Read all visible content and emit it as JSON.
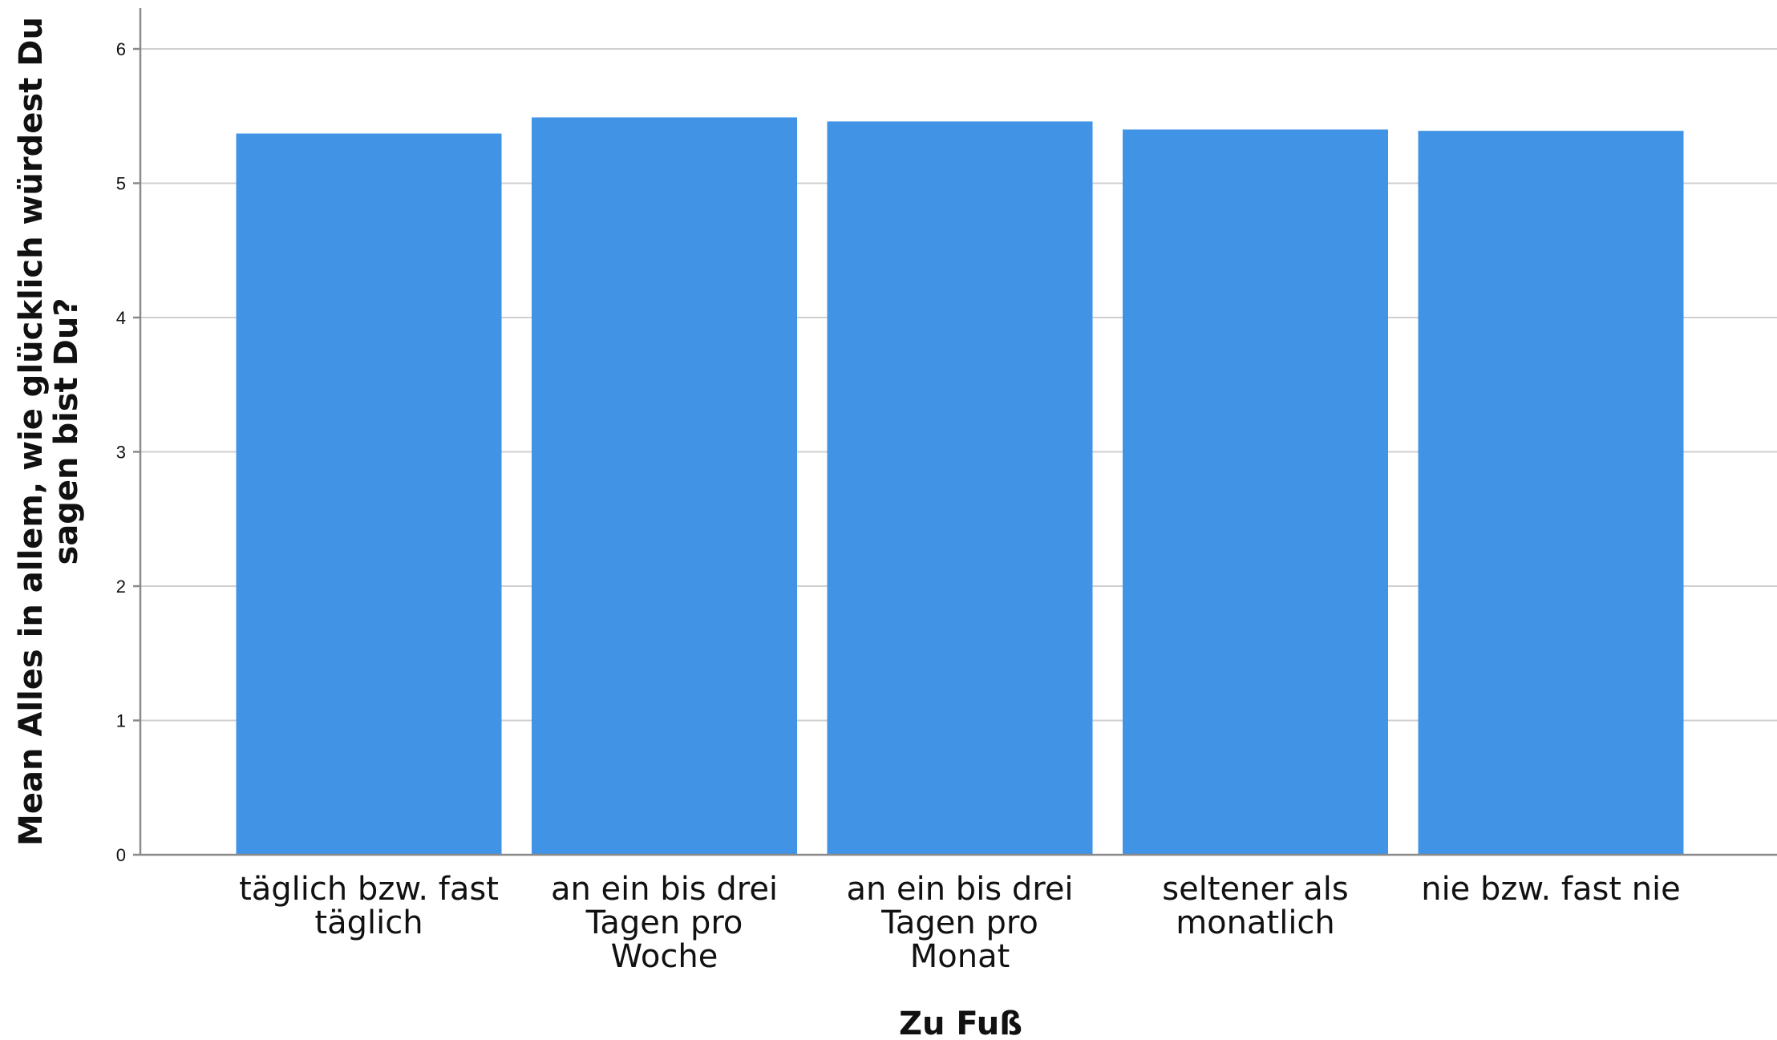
{
  "chart_data": {
    "type": "bar",
    "categories": [
      [
        "täglich bzw. fast",
        "täglich"
      ],
      [
        "an ein bis drei",
        "Tagen pro",
        "Woche"
      ],
      [
        "an ein bis drei",
        "Tagen pro",
        "Monat"
      ],
      [
        "seltener als",
        "monatlich"
      ],
      [
        "nie bzw. fast nie"
      ]
    ],
    "values": [
      5.37,
      5.49,
      5.46,
      5.4,
      5.39
    ],
    "xlabel": "Zu Fuß",
    "ylabel": [
      "Mean Alles in allem, wie glücklich würdest Du",
      "sagen bist Du?"
    ],
    "ylim": [
      0,
      6.3
    ],
    "yticks": [
      "0",
      "1",
      "2",
      "3",
      "4",
      "5",
      "6"
    ],
    "grid": true,
    "bar_color": "#4193e6",
    "legend": "none"
  }
}
